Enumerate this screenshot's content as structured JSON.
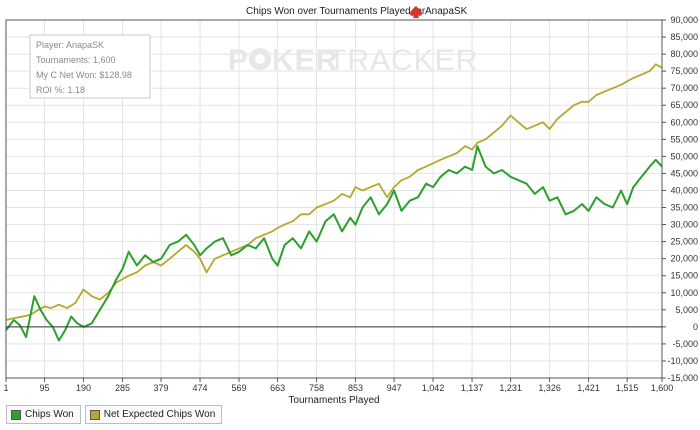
{
  "chart_data": {
    "type": "line",
    "title": "Chips Won over Tournaments Played for",
    "player_name": "AnapaSK",
    "xlabel": "Tournaments Played",
    "ylabel": "",
    "xlim": [
      1,
      1600
    ],
    "ylim": [
      -15000,
      90000
    ],
    "x_tick_labels": [
      "1",
      "95",
      "190",
      "285",
      "379",
      "474",
      "569",
      "663",
      "758",
      "853",
      "947",
      "1,042",
      "1,137",
      "1,231",
      "1,326",
      "1,421",
      "1,515",
      "1,600"
    ],
    "x_tick_values": [
      1,
      95,
      190,
      285,
      379,
      474,
      569,
      663,
      758,
      853,
      947,
      1042,
      1137,
      1231,
      1326,
      1421,
      1515,
      1600
    ],
    "y_ticks": [
      -15000,
      -10000,
      -5000,
      0,
      5000,
      10000,
      15000,
      20000,
      25000,
      30000,
      35000,
      40000,
      45000,
      50000,
      55000,
      60000,
      65000,
      70000,
      75000,
      80000,
      85000,
      90000
    ],
    "y_tick_labels": [
      "-15,000",
      "-10,000",
      "-5,000",
      "0",
      "5,000",
      "10,000",
      "15,000",
      "20,000",
      "25,000",
      "30,000",
      "35,000",
      "40,000",
      "45,000",
      "50,000",
      "55,000",
      "60,000",
      "65,000",
      "70,000",
      "75,000",
      "80,000",
      "85,000",
      "90,000"
    ],
    "grid": true,
    "legend_position": "bottom-left",
    "series": [
      {
        "name": "Chips Won",
        "color": "#2ca02c",
        "x": [
          1,
          20,
          35,
          50,
          60,
          70,
          85,
          100,
          115,
          130,
          145,
          160,
          175,
          190,
          210,
          230,
          250,
          270,
          285,
          300,
          320,
          340,
          360,
          379,
          400,
          420,
          440,
          460,
          474,
          490,
          510,
          530,
          550,
          569,
          590,
          610,
          630,
          650,
          663,
          680,
          700,
          720,
          740,
          758,
          780,
          800,
          820,
          840,
          853,
          870,
          890,
          910,
          930,
          947,
          965,
          985,
          1005,
          1025,
          1042,
          1060,
          1080,
          1100,
          1120,
          1137,
          1150,
          1170,
          1190,
          1210,
          1231,
          1250,
          1270,
          1290,
          1310,
          1326,
          1345,
          1365,
          1385,
          1405,
          1421,
          1440,
          1460,
          1480,
          1500,
          1515,
          1530,
          1550,
          1570,
          1585,
          1600
        ],
        "y": [
          -1000,
          2000,
          500,
          -3000,
          3000,
          9000,
          5000,
          2000,
          0,
          -4000,
          -1000,
          3000,
          1000,
          0,
          1000,
          5000,
          9000,
          14000,
          17000,
          22000,
          18000,
          21000,
          19000,
          20000,
          24000,
          25000,
          27000,
          24000,
          21000,
          23000,
          25000,
          26000,
          21000,
          22000,
          24000,
          23000,
          26000,
          20000,
          18000,
          24000,
          26000,
          23000,
          28000,
          25000,
          31000,
          33000,
          28000,
          32000,
          30000,
          35000,
          38000,
          33000,
          36000,
          40000,
          34000,
          37000,
          38000,
          42000,
          41000,
          44000,
          46000,
          45000,
          47000,
          46000,
          53000,
          47000,
          45000,
          46000,
          44000,
          43000,
          42000,
          39000,
          41000,
          37000,
          38000,
          33000,
          34000,
          36000,
          34000,
          38000,
          36000,
          35000,
          40000,
          36000,
          41000,
          44000,
          47000,
          49000,
          47000
        ]
      },
      {
        "name": "Net Expected Chips Won",
        "color": "#b5a82a",
        "x": [
          1,
          20,
          40,
          60,
          80,
          95,
          110,
          130,
          150,
          170,
          190,
          210,
          230,
          250,
          270,
          285,
          300,
          320,
          340,
          360,
          379,
          400,
          420,
          440,
          460,
          474,
          490,
          510,
          530,
          550,
          569,
          590,
          610,
          630,
          650,
          663,
          680,
          700,
          720,
          740,
          758,
          780,
          800,
          820,
          840,
          853,
          870,
          890,
          910,
          930,
          947,
          965,
          985,
          1005,
          1025,
          1042,
          1060,
          1080,
          1100,
          1120,
          1137,
          1150,
          1170,
          1190,
          1210,
          1231,
          1250,
          1270,
          1290,
          1310,
          1326,
          1345,
          1365,
          1385,
          1405,
          1421,
          1440,
          1460,
          1480,
          1500,
          1515,
          1530,
          1550,
          1570,
          1585,
          1600
        ],
        "y": [
          2000,
          2500,
          3000,
          3500,
          5000,
          6000,
          5500,
          6500,
          5500,
          7000,
          11000,
          9000,
          8000,
          10000,
          13000,
          14000,
          15000,
          16000,
          18000,
          19000,
          18000,
          20000,
          22000,
          24000,
          22000,
          20000,
          16000,
          20000,
          21000,
          22000,
          23000,
          24000,
          26000,
          27000,
          28000,
          29000,
          30000,
          31000,
          33000,
          33000,
          35000,
          36000,
          37000,
          39000,
          38000,
          41000,
          40000,
          41000,
          42000,
          38000,
          41000,
          43000,
          44000,
          46000,
          47000,
          48000,
          49000,
          50000,
          51000,
          53000,
          52000,
          54000,
          55000,
          57000,
          59000,
          62000,
          60000,
          58000,
          59000,
          60000,
          58000,
          61000,
          63000,
          65000,
          66000,
          66000,
          68000,
          69000,
          70000,
          71000,
          72000,
          73000,
          74000,
          75000,
          77000,
          76000
        ]
      }
    ]
  },
  "info_box": {
    "player": "Player: AnapaSK",
    "tournaments": "Tournaments: 1,600",
    "net_won": "My C Net Won: $128.98",
    "roi": "ROI %: 1.18"
  },
  "watermark": {
    "left": "P",
    "middle": "KER",
    "right": "TRACKER"
  },
  "legend": [
    {
      "label": "Chips Won",
      "color": "#2ca02c"
    },
    {
      "label": "Net Expected Chips Won",
      "color": "#b5a82a"
    }
  ]
}
